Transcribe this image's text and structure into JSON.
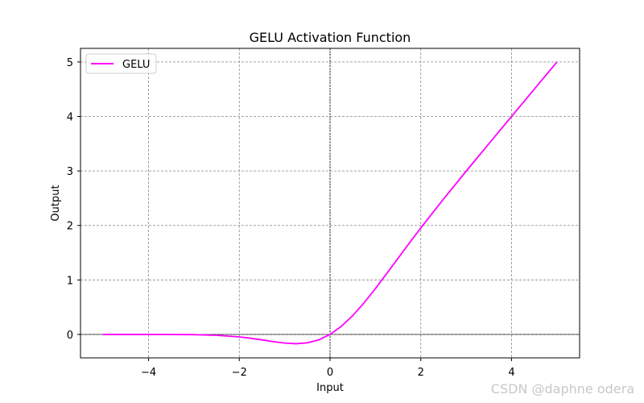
{
  "chart_data": {
    "type": "line",
    "title": "GELU Activation Function",
    "xlabel": "Input",
    "ylabel": "Output",
    "xlim": [
      -5.5,
      5.5
    ],
    "ylim": [
      -0.43,
      5.25
    ],
    "xticks": [
      -4,
      -2,
      0,
      2,
      4
    ],
    "xtick_labels": [
      "−4",
      "−2",
      "0",
      "2",
      "4"
    ],
    "yticks": [
      0,
      1,
      2,
      3,
      4,
      5
    ],
    "ytick_labels": [
      "0",
      "1",
      "2",
      "3",
      "4",
      "5"
    ],
    "grid": true,
    "legend": "top-left",
    "series": [
      {
        "name": "GELU",
        "color": "#ff00ff",
        "x": [
          -5.0,
          -4.5,
          -4.0,
          -3.5,
          -3.0,
          -2.5,
          -2.0,
          -1.75,
          -1.5,
          -1.25,
          -1.0,
          -0.75,
          -0.5,
          -0.25,
          0.0,
          0.25,
          0.5,
          0.75,
          1.0,
          1.25,
          1.5,
          1.75,
          2.0,
          2.5,
          3.0,
          3.5,
          4.0,
          4.5,
          5.0
        ],
        "y": [
          0.0,
          0.0,
          -0.0001,
          -0.0008,
          -0.004,
          -0.0155,
          -0.0455,
          -0.0702,
          -0.1002,
          -0.132,
          -0.1587,
          -0.17,
          -0.1543,
          -0.0998,
          0.0,
          0.1502,
          0.3457,
          0.58,
          0.8413,
          1.118,
          1.3998,
          1.6799,
          1.9545,
          2.4845,
          2.996,
          3.4992,
          3.9999,
          4.5,
          5.0
        ]
      }
    ],
    "reference_lines": {
      "x": 0,
      "y": 0
    }
  },
  "watermark": "CSDN @daphne odera\u0001"
}
